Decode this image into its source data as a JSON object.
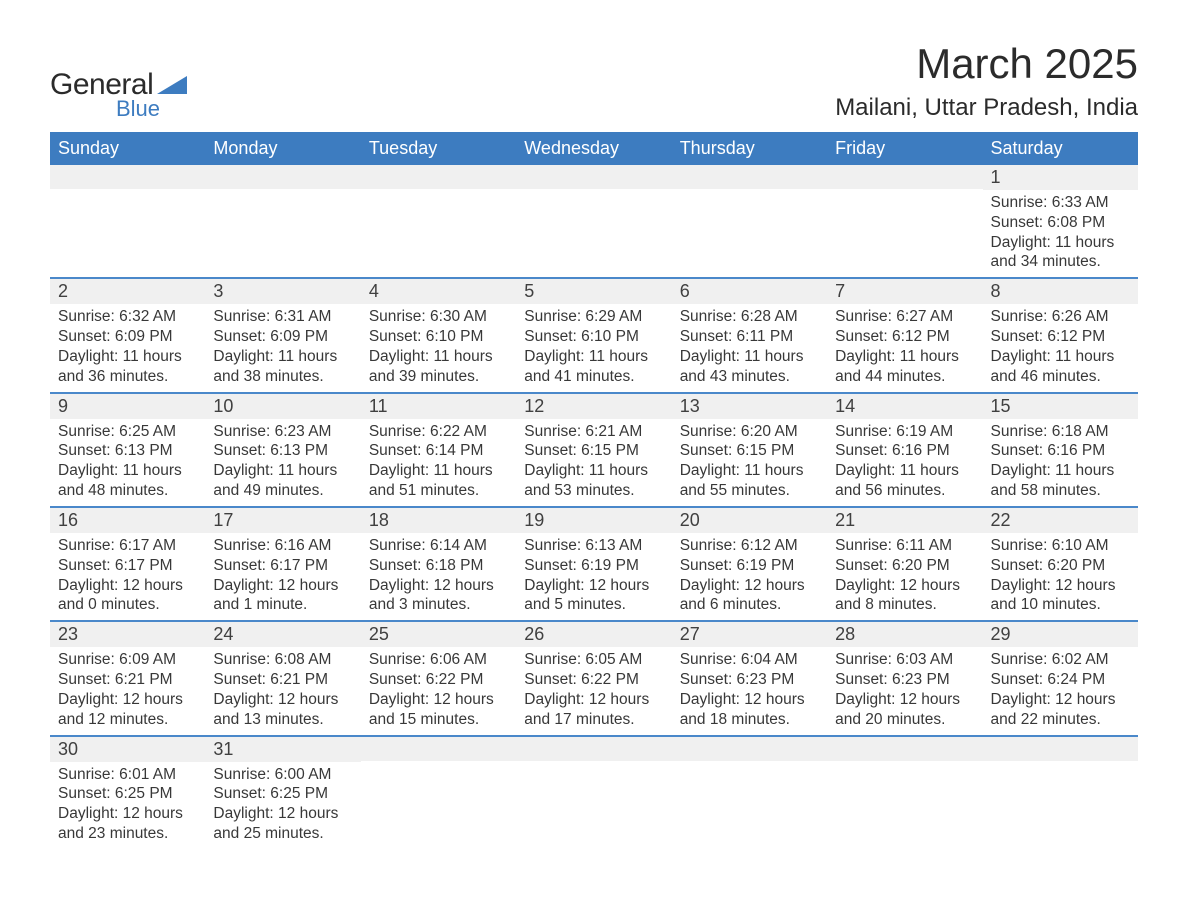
{
  "brand": {
    "general": "General",
    "blue": "Blue",
    "triangle_color": "#3d7cc0"
  },
  "header": {
    "title": "March 2025",
    "location": "Mailani, Uttar Pradesh, India"
  },
  "colors": {
    "header_bg": "#3d7cc0",
    "header_text": "#ffffff",
    "alt_row_bg": "#f0f0f0",
    "border": "#4a88ca",
    "text": "#383838",
    "page_bg": "#ffffff"
  },
  "typography": {
    "title_fontsize_pt": 32,
    "subtitle_fontsize_pt": 18,
    "dayheader_fontsize_pt": 14,
    "daynum_fontsize_pt": 14,
    "body_fontsize_pt": 12,
    "font_family": "Arial"
  },
  "columns": [
    "Sunday",
    "Monday",
    "Tuesday",
    "Wednesday",
    "Thursday",
    "Friday",
    "Saturday"
  ],
  "weeks": [
    [
      null,
      null,
      null,
      null,
      null,
      null,
      {
        "n": "1",
        "sunrise": "Sunrise: 6:33 AM",
        "sunset": "Sunset: 6:08 PM",
        "dl1": "Daylight: 11 hours",
        "dl2": "and 34 minutes."
      }
    ],
    [
      {
        "n": "2",
        "sunrise": "Sunrise: 6:32 AM",
        "sunset": "Sunset: 6:09 PM",
        "dl1": "Daylight: 11 hours",
        "dl2": "and 36 minutes."
      },
      {
        "n": "3",
        "sunrise": "Sunrise: 6:31 AM",
        "sunset": "Sunset: 6:09 PM",
        "dl1": "Daylight: 11 hours",
        "dl2": "and 38 minutes."
      },
      {
        "n": "4",
        "sunrise": "Sunrise: 6:30 AM",
        "sunset": "Sunset: 6:10 PM",
        "dl1": "Daylight: 11 hours",
        "dl2": "and 39 minutes."
      },
      {
        "n": "5",
        "sunrise": "Sunrise: 6:29 AM",
        "sunset": "Sunset: 6:10 PM",
        "dl1": "Daylight: 11 hours",
        "dl2": "and 41 minutes."
      },
      {
        "n": "6",
        "sunrise": "Sunrise: 6:28 AM",
        "sunset": "Sunset: 6:11 PM",
        "dl1": "Daylight: 11 hours",
        "dl2": "and 43 minutes."
      },
      {
        "n": "7",
        "sunrise": "Sunrise: 6:27 AM",
        "sunset": "Sunset: 6:12 PM",
        "dl1": "Daylight: 11 hours",
        "dl2": "and 44 minutes."
      },
      {
        "n": "8",
        "sunrise": "Sunrise: 6:26 AM",
        "sunset": "Sunset: 6:12 PM",
        "dl1": "Daylight: 11 hours",
        "dl2": "and 46 minutes."
      }
    ],
    [
      {
        "n": "9",
        "sunrise": "Sunrise: 6:25 AM",
        "sunset": "Sunset: 6:13 PM",
        "dl1": "Daylight: 11 hours",
        "dl2": "and 48 minutes."
      },
      {
        "n": "10",
        "sunrise": "Sunrise: 6:23 AM",
        "sunset": "Sunset: 6:13 PM",
        "dl1": "Daylight: 11 hours",
        "dl2": "and 49 minutes."
      },
      {
        "n": "11",
        "sunrise": "Sunrise: 6:22 AM",
        "sunset": "Sunset: 6:14 PM",
        "dl1": "Daylight: 11 hours",
        "dl2": "and 51 minutes."
      },
      {
        "n": "12",
        "sunrise": "Sunrise: 6:21 AM",
        "sunset": "Sunset: 6:15 PM",
        "dl1": "Daylight: 11 hours",
        "dl2": "and 53 minutes."
      },
      {
        "n": "13",
        "sunrise": "Sunrise: 6:20 AM",
        "sunset": "Sunset: 6:15 PM",
        "dl1": "Daylight: 11 hours",
        "dl2": "and 55 minutes."
      },
      {
        "n": "14",
        "sunrise": "Sunrise: 6:19 AM",
        "sunset": "Sunset: 6:16 PM",
        "dl1": "Daylight: 11 hours",
        "dl2": "and 56 minutes."
      },
      {
        "n": "15",
        "sunrise": "Sunrise: 6:18 AM",
        "sunset": "Sunset: 6:16 PM",
        "dl1": "Daylight: 11 hours",
        "dl2": "and 58 minutes."
      }
    ],
    [
      {
        "n": "16",
        "sunrise": "Sunrise: 6:17 AM",
        "sunset": "Sunset: 6:17 PM",
        "dl1": "Daylight: 12 hours",
        "dl2": "and 0 minutes."
      },
      {
        "n": "17",
        "sunrise": "Sunrise: 6:16 AM",
        "sunset": "Sunset: 6:17 PM",
        "dl1": "Daylight: 12 hours",
        "dl2": "and 1 minute."
      },
      {
        "n": "18",
        "sunrise": "Sunrise: 6:14 AM",
        "sunset": "Sunset: 6:18 PM",
        "dl1": "Daylight: 12 hours",
        "dl2": "and 3 minutes."
      },
      {
        "n": "19",
        "sunrise": "Sunrise: 6:13 AM",
        "sunset": "Sunset: 6:19 PM",
        "dl1": "Daylight: 12 hours",
        "dl2": "and 5 minutes."
      },
      {
        "n": "20",
        "sunrise": "Sunrise: 6:12 AM",
        "sunset": "Sunset: 6:19 PM",
        "dl1": "Daylight: 12 hours",
        "dl2": "and 6 minutes."
      },
      {
        "n": "21",
        "sunrise": "Sunrise: 6:11 AM",
        "sunset": "Sunset: 6:20 PM",
        "dl1": "Daylight: 12 hours",
        "dl2": "and 8 minutes."
      },
      {
        "n": "22",
        "sunrise": "Sunrise: 6:10 AM",
        "sunset": "Sunset: 6:20 PM",
        "dl1": "Daylight: 12 hours",
        "dl2": "and 10 minutes."
      }
    ],
    [
      {
        "n": "23",
        "sunrise": "Sunrise: 6:09 AM",
        "sunset": "Sunset: 6:21 PM",
        "dl1": "Daylight: 12 hours",
        "dl2": "and 12 minutes."
      },
      {
        "n": "24",
        "sunrise": "Sunrise: 6:08 AM",
        "sunset": "Sunset: 6:21 PM",
        "dl1": "Daylight: 12 hours",
        "dl2": "and 13 minutes."
      },
      {
        "n": "25",
        "sunrise": "Sunrise: 6:06 AM",
        "sunset": "Sunset: 6:22 PM",
        "dl1": "Daylight: 12 hours",
        "dl2": "and 15 minutes."
      },
      {
        "n": "26",
        "sunrise": "Sunrise: 6:05 AM",
        "sunset": "Sunset: 6:22 PM",
        "dl1": "Daylight: 12 hours",
        "dl2": "and 17 minutes."
      },
      {
        "n": "27",
        "sunrise": "Sunrise: 6:04 AM",
        "sunset": "Sunset: 6:23 PM",
        "dl1": "Daylight: 12 hours",
        "dl2": "and 18 minutes."
      },
      {
        "n": "28",
        "sunrise": "Sunrise: 6:03 AM",
        "sunset": "Sunset: 6:23 PM",
        "dl1": "Daylight: 12 hours",
        "dl2": "and 20 minutes."
      },
      {
        "n": "29",
        "sunrise": "Sunrise: 6:02 AM",
        "sunset": "Sunset: 6:24 PM",
        "dl1": "Daylight: 12 hours",
        "dl2": "and 22 minutes."
      }
    ],
    [
      {
        "n": "30",
        "sunrise": "Sunrise: 6:01 AM",
        "sunset": "Sunset: 6:25 PM",
        "dl1": "Daylight: 12 hours",
        "dl2": "and 23 minutes."
      },
      {
        "n": "31",
        "sunrise": "Sunrise: 6:00 AM",
        "sunset": "Sunset: 6:25 PM",
        "dl1": "Daylight: 12 hours",
        "dl2": "and 25 minutes."
      },
      null,
      null,
      null,
      null,
      null
    ]
  ]
}
